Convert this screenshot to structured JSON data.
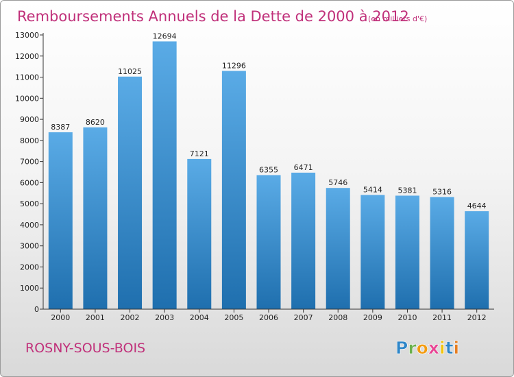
{
  "header": {
    "title": "Remboursements Annuels de la Dette de 2000 à 2012",
    "unit_note": "(en milliers d'€)"
  },
  "footer": {
    "city": "ROSNY-SOUS-BOIS",
    "brand": [
      "P",
      "r",
      "o",
      "x",
      "i",
      "t",
      "i"
    ],
    "brand_colors": [
      "#2e86c8",
      "#6ab04c",
      "#f39c12",
      "#e84393",
      "#f1c40f",
      "#2e86c8",
      "#e67e22"
    ]
  },
  "colors": {
    "bar_top": "#5aabe6",
    "bar_bottom": "#1f6fae",
    "accent": "#c0307a"
  },
  "chart_data": {
    "type": "bar",
    "title": "Remboursements Annuels de la Dette de 2000 à 2012",
    "subtitle": "(en milliers d'€)",
    "categories": [
      "2000",
      "2001",
      "2002",
      "2003",
      "2004",
      "2005",
      "2006",
      "2007",
      "2008",
      "2009",
      "2010",
      "2011",
      "2012"
    ],
    "values": [
      8387,
      8620,
      11025,
      12694,
      7121,
      11296,
      6355,
      6471,
      5746,
      5414,
      5381,
      5316,
      4644
    ],
    "ylim": [
      0,
      13000
    ],
    "yticks": [
      0,
      1000,
      2000,
      3000,
      4000,
      5000,
      6000,
      7000,
      8000,
      9000,
      10000,
      11000,
      12000,
      13000
    ],
    "grid": false,
    "legend": "none"
  }
}
